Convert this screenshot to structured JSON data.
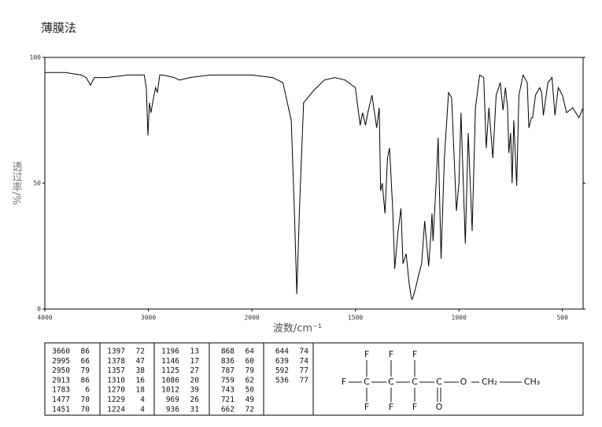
{
  "chart_data": {
    "type": "line",
    "title": "薄膜法",
    "xlabel": "波数/cm⁻¹",
    "ylabel": "透过率/%",
    "color": "#000000",
    "xlim": [
      4000,
      400
    ],
    "ylim": [
      0,
      100
    ],
    "xticks": [
      4000,
      3000,
      2000,
      1500,
      1000,
      500
    ],
    "yticks": [
      0,
      50,
      100
    ],
    "x": [
      4000,
      3800,
      3650,
      3600,
      3560,
      3520,
      3400,
      3200,
      3100,
      3040,
      3020,
      3004,
      2990,
      2975,
      2950,
      2930,
      2913,
      2890,
      2860,
      2750,
      2700,
      2600,
      2400,
      2200,
      2000,
      1900,
      1850,
      1810,
      1795,
      1783,
      1770,
      1750,
      1700,
      1650,
      1600,
      1550,
      1500,
      1477,
      1465,
      1451,
      1440,
      1420,
      1397,
      1385,
      1378,
      1370,
      1357,
      1345,
      1335,
      1320,
      1310,
      1295,
      1280,
      1270,
      1255,
      1240,
      1229,
      1224,
      1210,
      1196,
      1180,
      1165,
      1146,
      1135,
      1130,
      1125,
      1110,
      1100,
      1086,
      1070,
      1050,
      1035,
      1012,
      1000,
      990,
      969,
      955,
      936,
      920,
      900,
      880,
      868,
      855,
      836,
      820,
      800,
      787,
      775,
      765,
      759,
      750,
      743,
      735,
      721,
      710,
      690,
      670,
      662,
      650,
      644,
      630,
      610,
      600,
      592,
      570,
      550,
      536,
      520,
      500,
      480,
      450,
      420,
      400
    ],
    "values": [
      94,
      94,
      93,
      92,
      89,
      92,
      92,
      93,
      93,
      93,
      88,
      69,
      82,
      78,
      84,
      88,
      86,
      93,
      93,
      92,
      91,
      92,
      93,
      93,
      93,
      92,
      90,
      75,
      40,
      6,
      40,
      82,
      87,
      91,
      92,
      91,
      88,
      73,
      78,
      73,
      78,
      85,
      72,
      80,
      47,
      50,
      38,
      60,
      64,
      40,
      16,
      30,
      40,
      18,
      22,
      10,
      4,
      4,
      8,
      13,
      18,
      35,
      17,
      30,
      38,
      27,
      50,
      68,
      20,
      60,
      86,
      84,
      39,
      50,
      78,
      26,
      70,
      31,
      80,
      93,
      92,
      64,
      80,
      60,
      85,
      90,
      79,
      88,
      80,
      62,
      70,
      50,
      75,
      49,
      85,
      93,
      90,
      72,
      76,
      76,
      85,
      88,
      86,
      77,
      90,
      92,
      77,
      88,
      85,
      78,
      80,
      76,
      80
    ]
  },
  "peak_table": [
    [
      [
        3660,
        86
      ],
      [
        2995,
        66
      ],
      [
        2950,
        79
      ],
      [
        2913,
        86
      ],
      [
        1783,
        6
      ],
      [
        1477,
        70
      ],
      [
        1451,
        70
      ]
    ],
    [
      [
        1397,
        72
      ],
      [
        1378,
        47
      ],
      [
        1357,
        38
      ],
      [
        1310,
        16
      ],
      [
        1270,
        18
      ],
      [
        1229,
        4
      ],
      [
        1224,
        4
      ]
    ],
    [
      [
        1196,
        13
      ],
      [
        1146,
        17
      ],
      [
        1125,
        27
      ],
      [
        1086,
        20
      ],
      [
        1012,
        39
      ],
      [
        969,
        26
      ],
      [
        936,
        31
      ]
    ],
    [
      [
        868,
        64
      ],
      [
        836,
        60
      ],
      [
        787,
        79
      ],
      [
        759,
        62
      ],
      [
        743,
        50
      ],
      [
        721,
        49
      ],
      [
        662,
        72
      ]
    ],
    [
      [
        644,
        74
      ],
      [
        639,
        74
      ],
      [
        592,
        77
      ],
      [
        536,
        77
      ]
    ]
  ],
  "structure": {
    "top": [
      "F",
      "F",
      "F"
    ],
    "chain": [
      "F",
      "C",
      "C",
      "C",
      "C",
      "O",
      "CH₂",
      "CH₃"
    ],
    "bottom": [
      "F",
      "F",
      "F",
      "O"
    ]
  }
}
